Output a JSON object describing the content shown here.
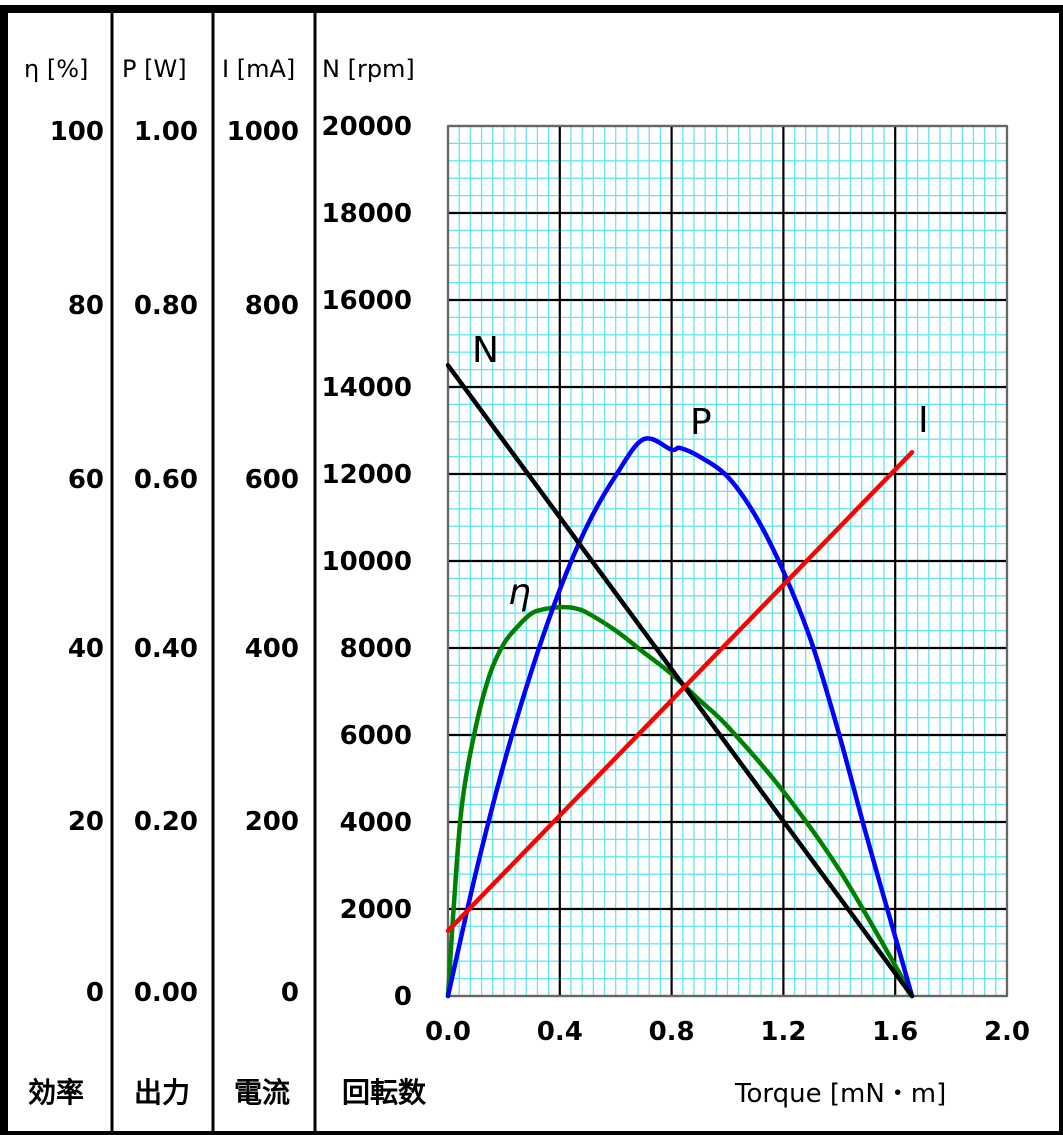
{
  "chart_data": {
    "type": "line",
    "xlabel": "Torque [mN・m]",
    "x_ticks": [
      "0.0",
      "0.4",
      "0.8",
      "1.2",
      "1.6",
      "2.0"
    ],
    "xlim": [
      0,
      2.0
    ],
    "grid": true,
    "scales": [
      {
        "key": "eta",
        "header": "η [%]",
        "ticks": [
          "100",
          "80",
          "60",
          "40",
          "20",
          "0"
        ],
        "footer": "効率",
        "ylim": [
          0,
          100
        ]
      },
      {
        "key": "P",
        "header": "P [W]",
        "ticks": [
          "1.00",
          "0.80",
          "0.60",
          "0.40",
          "0.20",
          "0.00"
        ],
        "footer": "出力",
        "ylim": [
          0,
          1.0
        ]
      },
      {
        "key": "I",
        "header": "I [mA]",
        "ticks": [
          "1000",
          "800",
          "600",
          "400",
          "200",
          "0"
        ],
        "footer": "電流",
        "ylim": [
          0,
          1000
        ]
      },
      {
        "key": "N",
        "header": "N [rpm]",
        "ticks": [
          "20000",
          "18000",
          "16000",
          "14000",
          "12000",
          "10000",
          "8000",
          "6000",
          "4000",
          "2000",
          "0"
        ],
        "footer": "回転数",
        "ylim": [
          0,
          20000
        ]
      }
    ],
    "series": [
      {
        "name": "N",
        "label": "N",
        "color": "#000000",
        "x": [
          0.0,
          1.66
        ],
        "y": [
          14500,
          0
        ]
      },
      {
        "name": "I",
        "label": "I",
        "color": "#ff0000",
        "x": [
          0.0,
          1.66
        ],
        "y": [
          75,
          625
        ]
      },
      {
        "name": "P",
        "label": "P",
        "color": "#0000ff",
        "x": [
          0.0,
          0.1,
          0.2,
          0.3,
          0.4,
          0.5,
          0.6,
          0.7,
          0.8,
          0.83,
          0.9,
          1.0,
          1.1,
          1.2,
          1.3,
          1.4,
          1.5,
          1.6,
          1.66
        ],
        "y": [
          0.0,
          0.142,
          0.267,
          0.375,
          0.467,
          0.542,
          0.598,
          0.64,
          0.628,
          0.63,
          0.62,
          0.597,
          0.552,
          0.488,
          0.407,
          0.3,
          0.181,
          0.068,
          0.0
        ]
      },
      {
        "name": "eta",
        "label": "η",
        "color": "#008000",
        "x": [
          0.0,
          0.02,
          0.05,
          0.1,
          0.15,
          0.2,
          0.25,
          0.3,
          0.35,
          0.4,
          0.45,
          0.5,
          0.6,
          0.7,
          0.8,
          0.9,
          1.0,
          1.2,
          1.4,
          1.6,
          1.66
        ],
        "y": [
          0.0,
          10.0,
          22.0,
          31.0,
          37.0,
          40.5,
          42.5,
          44.0,
          44.5,
          44.7,
          44.6,
          44.0,
          42.0,
          39.5,
          37.0,
          34.0,
          31.0,
          23.5,
          14.5,
          3.5,
          0.0
        ]
      }
    ]
  }
}
